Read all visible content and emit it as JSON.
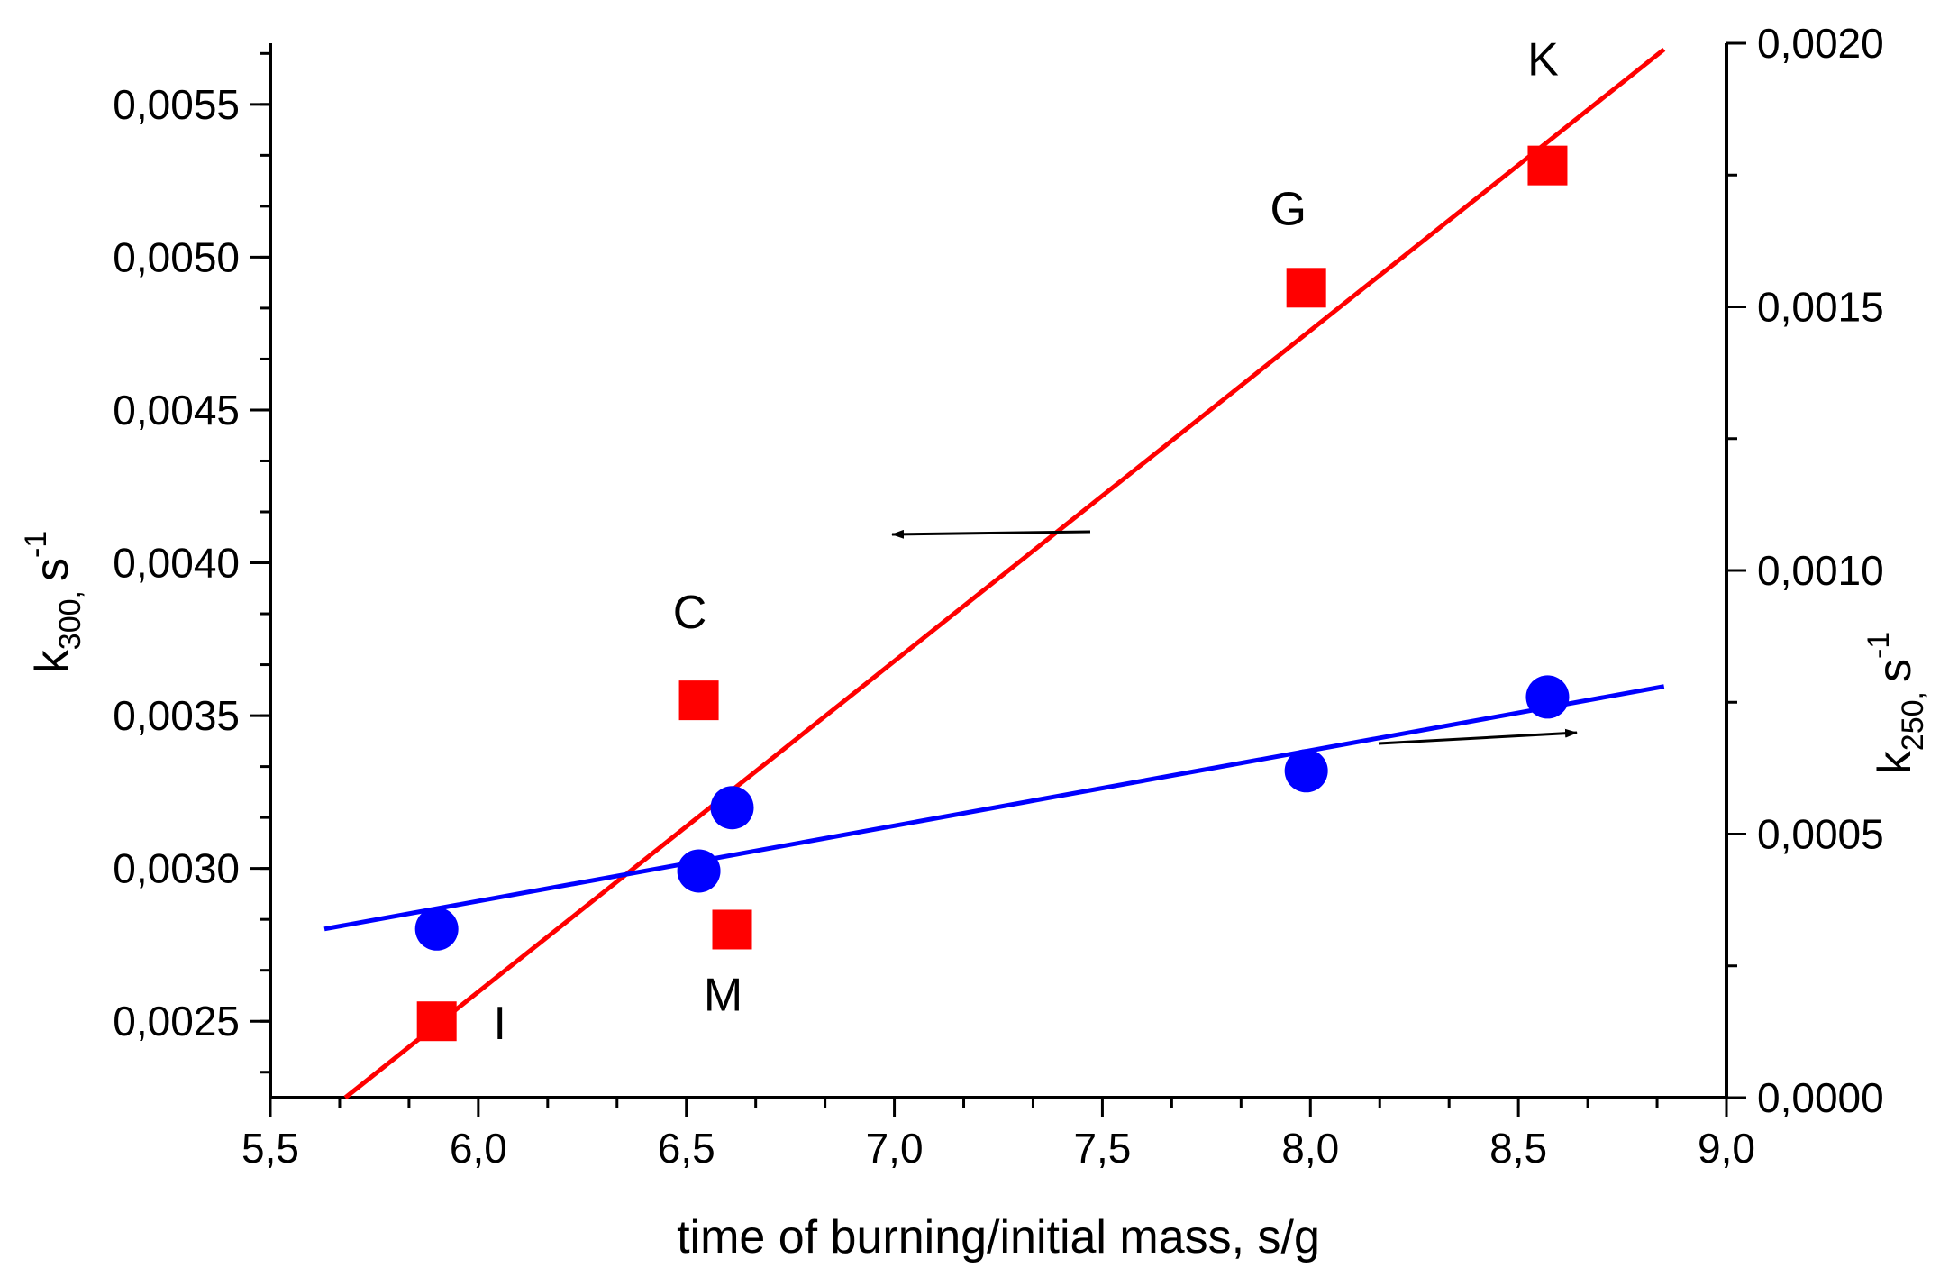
{
  "chart_data": {
    "type": "scatter",
    "x_axis": {
      "label": "time of burning/initial mass, s/g",
      "range": [
        5.5,
        9.0
      ],
      "ticks": [
        "5,5",
        "6,0",
        "6,5",
        "7,0",
        "7,5",
        "8,0",
        "8,5",
        "9,0"
      ]
    },
    "y_left": {
      "label_main": "k",
      "label_sub": "300,",
      "label_unit": "s",
      "label_exp": "-1",
      "range": [
        0.00225,
        0.0057
      ],
      "ticks": [
        "0,0025",
        "0,0030",
        "0,0035",
        "0,0040",
        "0,0045",
        "0,0050",
        "0,0055"
      ]
    },
    "y_right": {
      "label_main": "k",
      "label_sub": "250,",
      "label_unit": "s",
      "label_exp": "-1",
      "range": [
        0.0,
        0.002
      ],
      "ticks": [
        "0,0000",
        "0,0005",
        "0,0010",
        "0,0015",
        "0,0020"
      ]
    },
    "series": [
      {
        "name": "k300",
        "axis": "left",
        "marker": "square",
        "color": "#ff0000",
        "points": [
          {
            "x": 5.9,
            "y": 0.0025,
            "label": "I"
          },
          {
            "x": 6.53,
            "y": 0.00355,
            "label": "C"
          },
          {
            "x": 6.61,
            "y": 0.0028,
            "label": "M"
          },
          {
            "x": 7.99,
            "y": 0.0049,
            "label": "G"
          },
          {
            "x": 8.57,
            "y": 0.0053,
            "label": "K"
          }
        ],
        "fit": {
          "x_start": 5.68,
          "y_start": 0.00225,
          "x_end": 8.85,
          "y_end": 0.00568
        }
      },
      {
        "name": "k250",
        "axis": "right",
        "marker": "circle",
        "color": "#0000ff",
        "points": [
          {
            "x": 5.9,
            "y": 0.00032
          },
          {
            "x": 6.53,
            "y": 0.00043
          },
          {
            "x": 6.61,
            "y": 0.00055
          },
          {
            "x": 7.99,
            "y": 0.00062
          },
          {
            "x": 8.57,
            "y": 0.00076
          }
        ],
        "fit": {
          "x_start": 5.63,
          "y_start": 0.00032,
          "x_end": 8.85,
          "y_end": 0.00078
        }
      }
    ],
    "annotations": [
      {
        "type": "arrow",
        "direction": "left",
        "target_axis": "left"
      },
      {
        "type": "arrow",
        "direction": "right",
        "target_axis": "right"
      }
    ]
  }
}
